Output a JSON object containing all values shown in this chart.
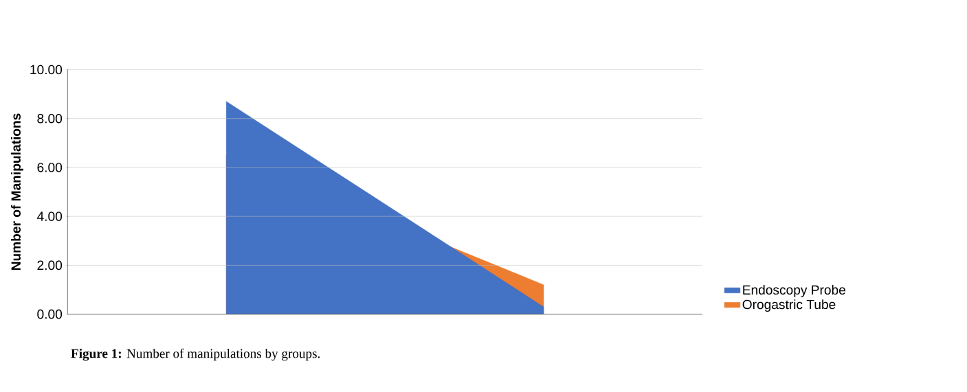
{
  "chart_data": {
    "type": "area",
    "ylabel": "Number of Manipulations",
    "categories": [
      null,
      null
    ],
    "series": [
      {
        "name": "Endoscopy Probe",
        "color": "#4472c4",
        "values": [
          8.7,
          0.3
        ]
      },
      {
        "name": "Orogastric Tube",
        "color": "#ed7d31",
        "values": [
          6.5,
          1.2
        ]
      }
    ],
    "ylim": [
      0,
      10
    ],
    "yticks": [
      {
        "value": 0,
        "label": "0.00"
      },
      {
        "value": 2,
        "label": "2.00"
      },
      {
        "value": 4,
        "label": "4.00"
      },
      {
        "value": 6,
        "label": "6.00"
      },
      {
        "value": 8,
        "label": "8.00"
      },
      {
        "value": 10,
        "label": "10.00"
      }
    ],
    "grid": "y",
    "legend": "right",
    "annotations": [
      "**Figure 1:** Number of manipulations by groups."
    ]
  }
}
